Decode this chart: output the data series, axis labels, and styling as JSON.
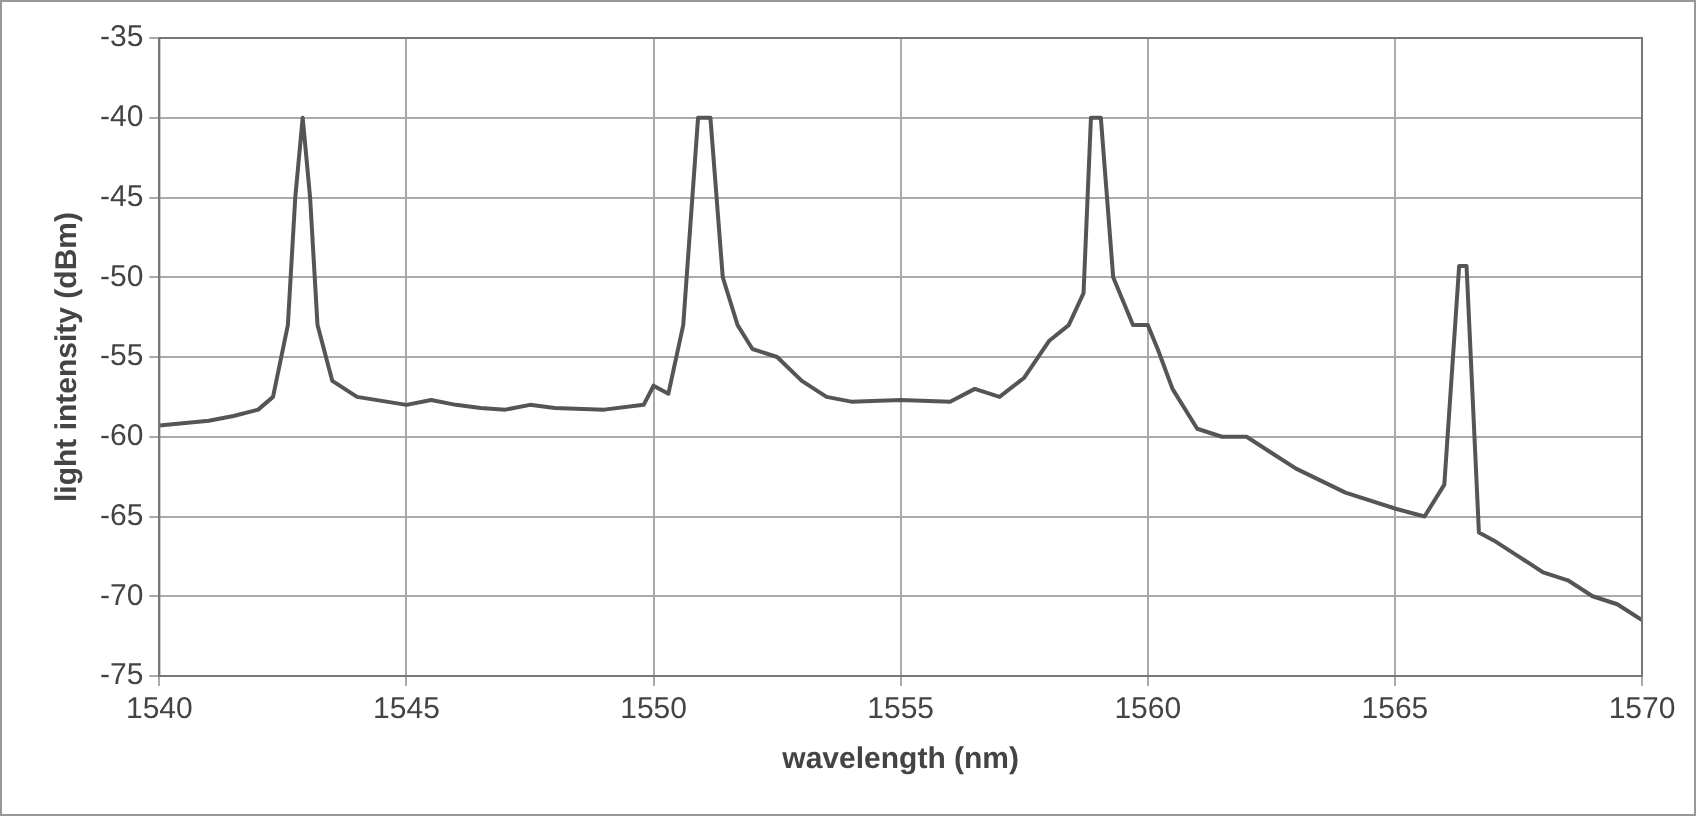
{
  "chart_data": {
    "type": "line",
    "xlabel": "wavelength (nm)",
    "ylabel": "light intensity (dBm)",
    "xlim": [
      1540,
      1570
    ],
    "xticks": [
      1540,
      1545,
      1550,
      1555,
      1560,
      1565,
      1570
    ],
    "ylim": [
      -75,
      -35
    ],
    "yticks": [
      -75,
      -70,
      -65,
      -60,
      -55,
      -50,
      -45,
      -40,
      -35
    ],
    "grid": true,
    "legend": false,
    "marker": "none",
    "series": [
      {
        "color": "#555555",
        "x": [
          1540,
          1541,
          1541.5,
          1542,
          1542.3,
          1542.6,
          1542.75,
          1542.9,
          1543.05,
          1543.2,
          1543.5,
          1544,
          1545,
          1545.5,
          1546,
          1546.5,
          1547,
          1547.5,
          1548,
          1549,
          1549.8,
          1550,
          1550.3,
          1550.6,
          1550.9,
          1551.15,
          1551.4,
          1551.7,
          1552,
          1552.5,
          1553,
          1553.5,
          1554,
          1555,
          1556,
          1556.5,
          1557,
          1557.5,
          1558,
          1558.4,
          1558.7,
          1558.85,
          1559.05,
          1559.3,
          1559.7,
          1560,
          1560.2,
          1560.5,
          1561,
          1561.5,
          1562,
          1562.5,
          1563,
          1564,
          1565,
          1565.6,
          1566,
          1566.3,
          1566.45,
          1566.7,
          1567,
          1567.5,
          1568,
          1568.5,
          1569,
          1569.5,
          1570
        ],
        "values": [
          -59.3,
          -59,
          -58.7,
          -58.3,
          -57.5,
          -53,
          -45,
          -40,
          -45,
          -53,
          -56.5,
          -57.5,
          -58,
          -57.7,
          -58,
          -58.2,
          -58.3,
          -58,
          -58.2,
          -58.3,
          -58,
          -56.8,
          -57.3,
          -53,
          -40,
          -40,
          -50,
          -53,
          -54.5,
          -55,
          -56.5,
          -57.5,
          -57.8,
          -57.7,
          -57.8,
          -57,
          -57.5,
          -56.3,
          -54,
          -53,
          -51,
          -40,
          -40,
          -50,
          -53,
          -53,
          -54.5,
          -57,
          -59.5,
          -60,
          -60,
          -61,
          -62,
          -63.5,
          -64.5,
          -65,
          -63,
          -49.3,
          -49.3,
          -66,
          -66.5,
          -67.5,
          -68.5,
          -69,
          -70,
          -70.5,
          -71.5
        ]
      }
    ]
  }
}
